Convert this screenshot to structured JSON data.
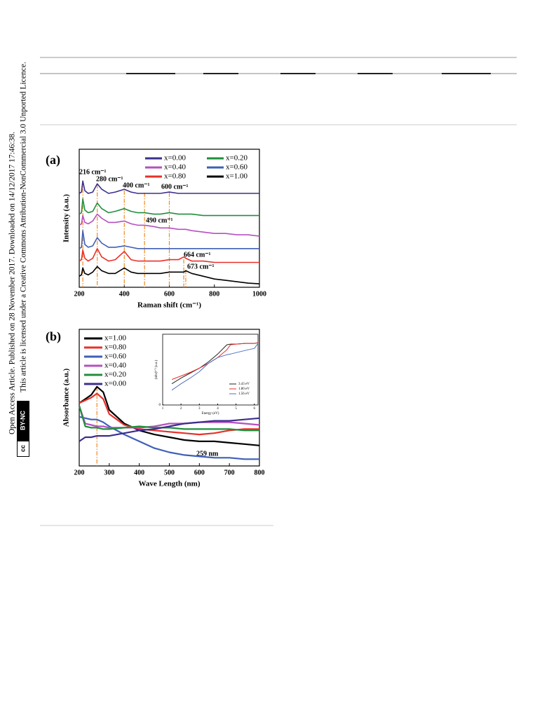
{
  "sidebar": {
    "line1": "Open Access Article. Published on 28 November 2017. Downloaded on 14/12/2017 17:46:38.",
    "line2": "This article is licensed under a Creative Commons Attribution-NonCommercial 3.0 Unported Licence.",
    "badge_cc": "cc",
    "badge": "BY-NC"
  },
  "chart_data": [
    {
      "type": "line",
      "panel": "(a)",
      "xlabel": "Raman shift (cm⁻¹)",
      "ylabel": "Intensity (a.u.)",
      "xlim": [
        200,
        1000
      ],
      "xticks": [
        200,
        400,
        600,
        800,
        1000
      ],
      "ylim": [
        0,
        100
      ],
      "x": [
        200,
        210,
        216,
        225,
        240,
        260,
        280,
        300,
        330,
        360,
        400,
        430,
        460,
        490,
        530,
        560,
        600,
        640,
        664,
        673,
        700,
        750,
        800,
        850,
        900,
        950,
        1000
      ],
      "series": [
        {
          "name": "x=0.00",
          "color": "#3b2f8c",
          "values": [
            68,
            69,
            77,
            70,
            68,
            69,
            75,
            71,
            68,
            69,
            71,
            69,
            68,
            68,
            68,
            68,
            69,
            68,
            68,
            68,
            68,
            68,
            68,
            68,
            68,
            68,
            68
          ]
        },
        {
          "name": "x=0.20",
          "color": "#1f8f3c",
          "values": [
            53,
            54,
            64,
            56,
            54,
            55,
            61,
            57,
            54,
            55,
            57,
            55,
            54,
            54,
            53,
            53,
            54,
            53,
            53,
            53,
            53,
            52,
            52,
            52,
            52,
            52,
            52
          ]
        },
        {
          "name": "x=0.40",
          "color": "#b650c0",
          "values": [
            45,
            46,
            52,
            47,
            46,
            48,
            53,
            50,
            47,
            47,
            48,
            46,
            45,
            45,
            44,
            43,
            43,
            42,
            42,
            42,
            41,
            40,
            39,
            39,
            38,
            38,
            37
          ]
        },
        {
          "name": "x=0.60",
          "color": "#3f5fb8",
          "values": [
            28,
            29,
            41,
            31,
            29,
            30,
            36,
            32,
            29,
            29,
            30,
            29,
            28,
            28,
            28,
            28,
            28,
            28,
            28,
            28,
            28,
            28,
            28,
            28,
            28,
            28,
            28
          ]
        },
        {
          "name": "x=0.80",
          "color": "#e8302a",
          "values": [
            19,
            20,
            27,
            21,
            19,
            21,
            28,
            22,
            19,
            20,
            26,
            20,
            19,
            19,
            19,
            19,
            20,
            20,
            22,
            21,
            19,
            19,
            18,
            18,
            18,
            18,
            18
          ]
        },
        {
          "name": "x=1.00",
          "color": "#000000",
          "values": [
            8,
            9,
            14,
            10,
            9,
            11,
            15,
            12,
            10,
            10,
            14,
            11,
            10,
            10,
            10,
            10,
            11,
            11,
            11,
            12,
            10,
            8,
            6,
            5,
            4,
            3,
            2.5
          ]
        }
      ],
      "annotations": [
        {
          "text": "216 cm⁻¹",
          "x": 216
        },
        {
          "text": "280 cm⁻¹",
          "x": 280
        },
        {
          "text": "400 cm⁻¹",
          "x": 400
        },
        {
          "text": "600 cm⁻¹",
          "x": 600
        },
        {
          "text": "490 cm⁻¹",
          "x": 490
        },
        {
          "text": "664 cm⁻¹",
          "x": 664
        },
        {
          "text": "673 cm⁻¹",
          "x": 673
        }
      ]
    },
    {
      "type": "line",
      "panel": "(b)",
      "xlabel": "Wave Length (nm)",
      "ylabel": "Absorbance (a.u.)",
      "xlim": [
        200,
        800
      ],
      "xticks": [
        200,
        300,
        400,
        500,
        600,
        700,
        800
      ],
      "ylim": [
        0,
        100
      ],
      "x": [
        200,
        220,
        240,
        259,
        280,
        300,
        350,
        400,
        450,
        500,
        550,
        600,
        650,
        700,
        750,
        800
      ],
      "series": [
        {
          "name": "x=1.00",
          "color": "#000000",
          "values": [
            46,
            49,
            52,
            58,
            54,
            41,
            31,
            26,
            23,
            21,
            19,
            18,
            18,
            17,
            16,
            15
          ]
        },
        {
          "name": "x=0.80",
          "color": "#e8302a",
          "values": [
            46,
            48,
            50,
            53,
            49,
            38,
            30,
            27,
            26,
            25,
            24,
            23,
            24,
            26,
            27,
            27
          ]
        },
        {
          "name": "x=0.60",
          "color": "#3f5fb8",
          "values": [
            36,
            35,
            34,
            34,
            32,
            29,
            23,
            18,
            13,
            10,
            8,
            7,
            6,
            6,
            5,
            5
          ]
        },
        {
          "name": "x=0.40",
          "color": "#b650c0",
          "values": [
            44,
            31,
            30,
            29,
            29,
            28,
            28,
            28,
            29,
            31,
            31,
            32,
            32,
            32,
            31,
            30
          ]
        },
        {
          "name": "x=0.20",
          "color": "#1f8f3c",
          "values": [
            44,
            29,
            28,
            28,
            27,
            27,
            28,
            29,
            28,
            28,
            27,
            27,
            27,
            27,
            26,
            26
          ]
        },
        {
          "name": "x=0.00",
          "color": "#3b2f8c",
          "values": [
            18,
            21,
            21,
            22,
            22,
            22,
            24,
            26,
            27,
            29,
            31,
            32,
            33,
            33,
            34,
            35
          ]
        }
      ],
      "annotations": [
        {
          "text": "259 nm",
          "x": 259
        }
      ]
    },
    {
      "type": "line",
      "xlabel": "Energy (eV)",
      "ylabel": "(αhν)¹ᐟ² (a.u.)",
      "xlim": [
        1,
        6.2
      ],
      "xticks": [
        1,
        2,
        3,
        4,
        5,
        6
      ],
      "ylim": [
        0,
        100
      ],
      "yticks": [
        0
      ],
      "x": [
        1.5,
        2,
        2.5,
        3,
        3.5,
        4,
        4.5,
        4.7,
        5,
        5.5,
        6,
        6.2
      ],
      "series": [
        {
          "name": "3.43 eV",
          "color": "#222222",
          "values": [
            30,
            38,
            45,
            52,
            61,
            72,
            85,
            86,
            86,
            87,
            87,
            88
          ]
        },
        {
          "name": "1.80 eV",
          "color": "#e8302a",
          "values": [
            36,
            41,
            46,
            52,
            59,
            67,
            78,
            85,
            86,
            87,
            87,
            88
          ]
        },
        {
          "name": "1.56 eV",
          "color": "#4f6fc0",
          "values": [
            21,
            30,
            38,
            47,
            59,
            67,
            71,
            72,
            74,
            77,
            80,
            87
          ]
        }
      ]
    }
  ]
}
